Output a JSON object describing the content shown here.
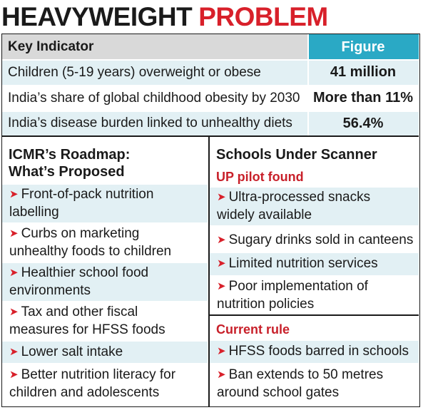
{
  "headline": {
    "part1": "HEAVYWEIGHT",
    "part2": "PROBLEM"
  },
  "table": {
    "header": {
      "indicator": "Key Indicator",
      "figure": "Figure"
    },
    "rows": [
      {
        "indicator": "Children (5-19 years) overweight or obese",
        "figure": "41 million"
      },
      {
        "indicator": "India’s share of global childhood obesity by 2030",
        "figure": "More than 11%"
      },
      {
        "indicator": "India’s disease burden linked to unhealthy diets",
        "figure": "56.4%"
      }
    ]
  },
  "roadmap": {
    "title_line1": "ICMR’s Roadmap:",
    "title_line2": "What’s Proposed",
    "items": [
      {
        "line1": "Front-of-pack nutrition",
        "line2": "labelling"
      },
      {
        "line1": "Curbs on marketing",
        "line2": "unhealthy foods to children"
      },
      {
        "line1": "Healthier school food",
        "line2": "environments"
      },
      {
        "line1": "Tax and other fiscal",
        "line2": "measures for HFSS foods"
      },
      {
        "line1": "Lower salt intake",
        "line2": ""
      },
      {
        "line1": "Better nutrition literacy for",
        "line2": "children and adolescents"
      }
    ]
  },
  "schools": {
    "title": "Schools Under Scanner",
    "pilot_label": "UP pilot found",
    "pilot_items": [
      {
        "line1": "Ultra-processed snacks",
        "line2": "widely available"
      },
      {
        "line1": "Sugary drinks sold in canteens",
        "line2": ""
      },
      {
        "line1": "Limited nutrition services",
        "line2": ""
      },
      {
        "line1": "Poor implementation of",
        "line2": "nutrition policies"
      }
    ],
    "rule_label": "Current rule",
    "rule_items": [
      {
        "line1": "HFSS foods barred in schools",
        "line2": ""
      },
      {
        "line1": "Ban extends to 50 metres",
        "line2": "around school gates"
      }
    ]
  },
  "arrow_glyph": "➤",
  "colors": {
    "accent_red": "#d8202a",
    "header_teal": "#2aa9c5",
    "row_tint": "#e2f0f4",
    "header_grey": "#d9d9d9"
  }
}
